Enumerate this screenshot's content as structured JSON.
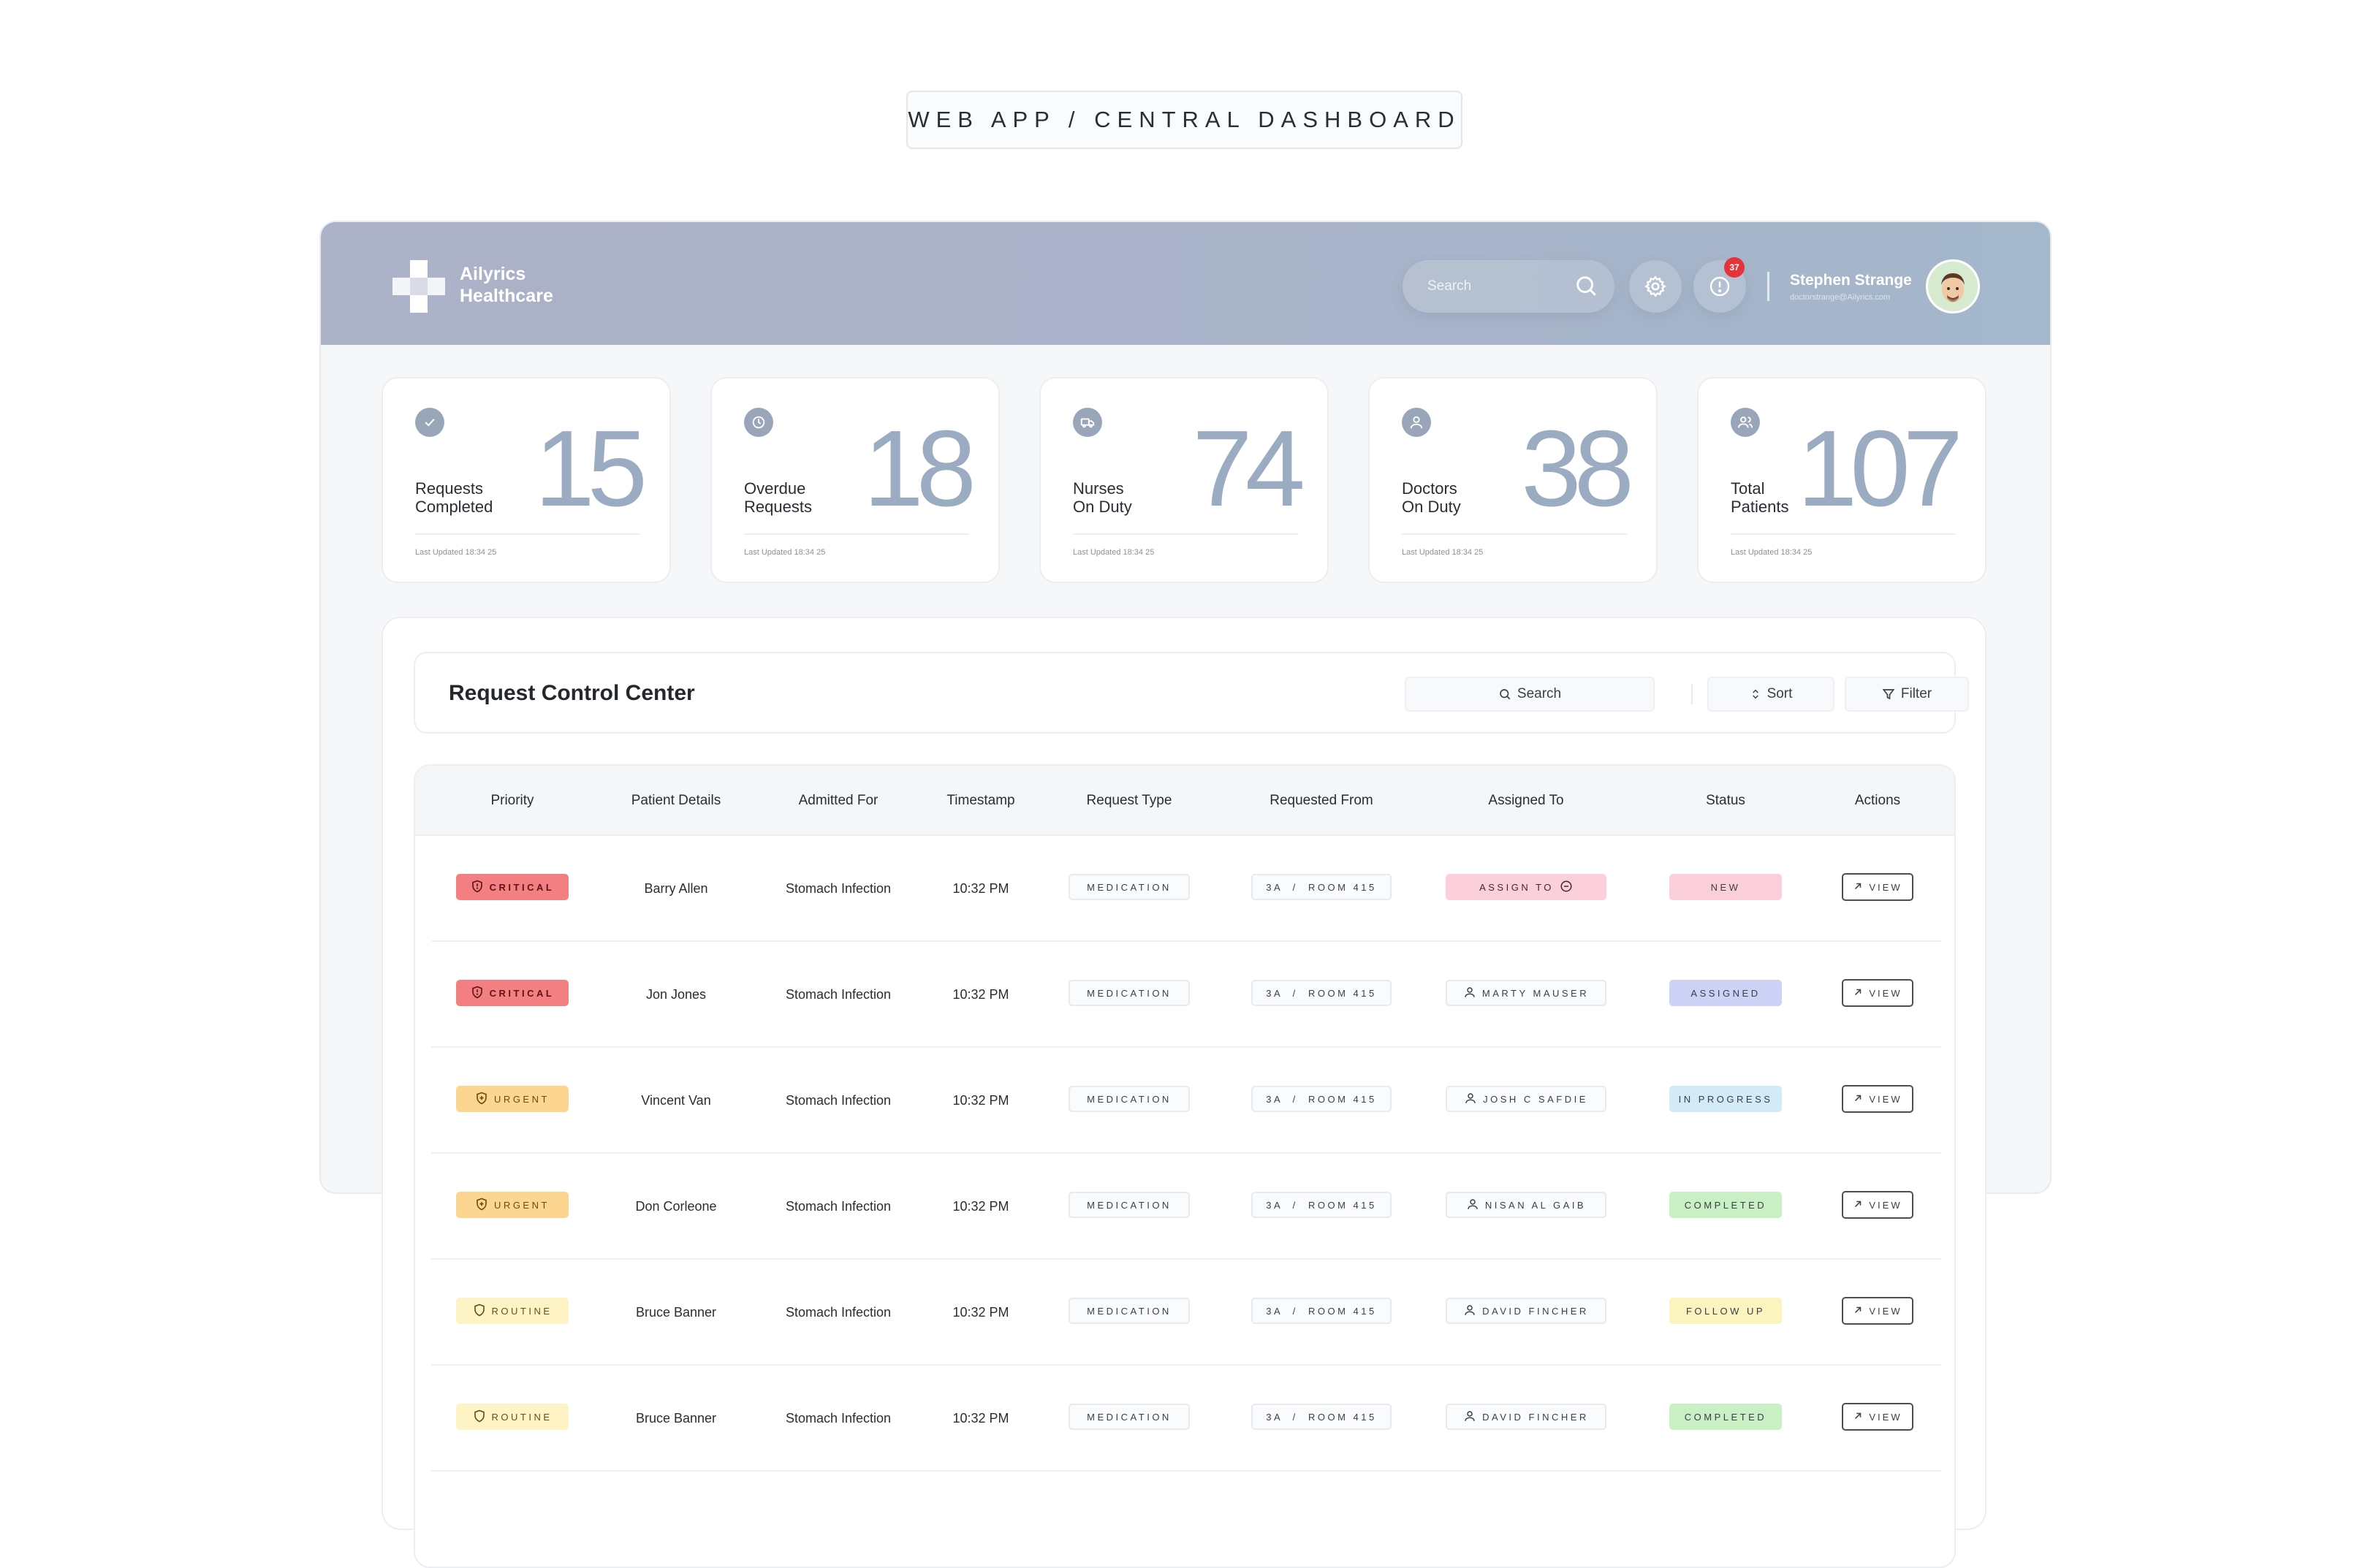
{
  "page_title": "WEB APP / CENTRAL DASHBOARD",
  "brand": {
    "line1": "Ailyrics",
    "line2": "Healthcare"
  },
  "header": {
    "search_placeholder": "Search",
    "notification_count": "37",
    "user_name": "Stephen Strange",
    "user_email": "doctorstrange@Ailyrics.com"
  },
  "stats": [
    {
      "label": "Requests\nCompleted",
      "value": "15",
      "updated": "Last Updated 18:34 25",
      "icon": "check-icon"
    },
    {
      "label": "Overdue\nRequests",
      "value": "18",
      "updated": "Last Updated 18:34 25",
      "icon": "clock-icon"
    },
    {
      "label": "Nurses\nOn Duty",
      "value": "74",
      "updated": "Last Updated 18:34 25",
      "icon": "ambulance-icon"
    },
    {
      "label": "Doctors\nOn Duty",
      "value": "38",
      "updated": "Last Updated 18:34 25",
      "icon": "user-icon"
    },
    {
      "label": "Total\nPatients",
      "value": "107",
      "updated": "Last Updated 18:34 25",
      "icon": "users-icon"
    }
  ],
  "control_center": {
    "title": "Request Control Center",
    "search_label": "Search",
    "sort_label": "Sort",
    "filter_label": "Filter"
  },
  "table": {
    "columns": [
      "Priority",
      "Patient Details",
      "Admitted For",
      "Timestamp",
      "Request Type",
      "Requested From",
      "Assigned To",
      "Status",
      "Actions"
    ],
    "rows": [
      {
        "priority": "CRITICAL",
        "patient": "Barry Allen",
        "admitted": "Stomach Infection",
        "time": "10:32 PM",
        "type": "MEDICATION",
        "from": "3A  /  ROOM 415",
        "assigned": "ASSIGN TO",
        "status": "NEW",
        "action": "VIEW"
      },
      {
        "priority": "CRITICAL",
        "patient": "Jon Jones",
        "admitted": "Stomach Infection",
        "time": "10:32 PM",
        "type": "MEDICATION",
        "from": "3A  /  ROOM 415",
        "assigned": "MARTY MAUSER",
        "status": "ASSIGNED",
        "action": "VIEW"
      },
      {
        "priority": "URGENT",
        "patient": "Vincent Van",
        "admitted": "Stomach Infection",
        "time": "10:32 PM",
        "type": "MEDICATION",
        "from": "3A  /  ROOM 415",
        "assigned": "JOSH C SAFDIE",
        "status": "IN PROGRESS",
        "action": "VIEW"
      },
      {
        "priority": "URGENT",
        "patient": "Don Corleone",
        "admitted": "Stomach Infection",
        "time": "10:32 PM",
        "type": "MEDICATION",
        "from": "3A  /  ROOM 415",
        "assigned": "NISAN AL GAIB",
        "status": "COMPLETED",
        "action": "VIEW"
      },
      {
        "priority": "ROUTINE",
        "patient": "Bruce Banner",
        "admitted": "Stomach Infection",
        "time": "10:32 PM",
        "type": "MEDICATION",
        "from": "3A  /  ROOM 415",
        "assigned": "DAVID FINCHER",
        "status": "FOLLOW UP",
        "action": "VIEW"
      },
      {
        "priority": "ROUTINE",
        "patient": "Bruce Banner",
        "admitted": "Stomach Infection",
        "time": "10:32 PM",
        "type": "MEDICATION",
        "from": "3A  /  ROOM 415",
        "assigned": "DAVID FINCHER",
        "status": "COMPLETED",
        "action": "VIEW"
      }
    ]
  },
  "colors": {
    "critical": "#f47f82",
    "urgent": "#fcd691",
    "routine": "#fdf3c4",
    "stat_value": "#9aabc2",
    "header_gradient_start": "#acb2c7",
    "header_gradient_end": "#a4b7cb"
  }
}
